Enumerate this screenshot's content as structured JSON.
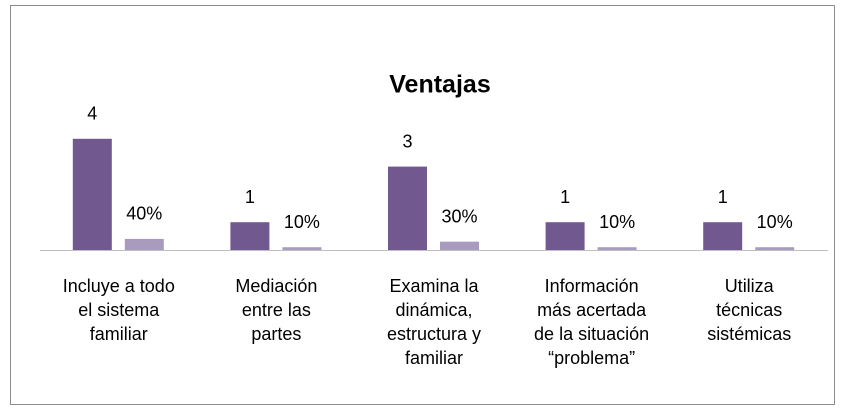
{
  "chart_data": {
    "type": "bar",
    "title": "Ventajas",
    "categories": [
      [
        "Incluye a todo",
        "el sistema",
        "familiar"
      ],
      [
        "Mediación",
        "entre las",
        "partes"
      ],
      [
        "Examina la",
        "dinámica,",
        "estructura y",
        "familiar"
      ],
      [
        "Información",
        "más acertada",
        "de la situación",
        "“problema”"
      ],
      [
        "Utiliza",
        "técnicas",
        "sistémicas"
      ]
    ],
    "series": [
      {
        "color": "#71588f",
        "values": [
          4,
          1,
          3,
          1,
          1
        ]
      },
      {
        "color": "#a99bbd",
        "values": [
          0.4,
          0.1,
          0.3,
          0.1,
          0.1
        ],
        "value_labels": [
          "40%",
          "10%",
          "30%",
          "10%",
          "10%"
        ]
      }
    ],
    "ylim": [
      0,
      5
    ]
  }
}
